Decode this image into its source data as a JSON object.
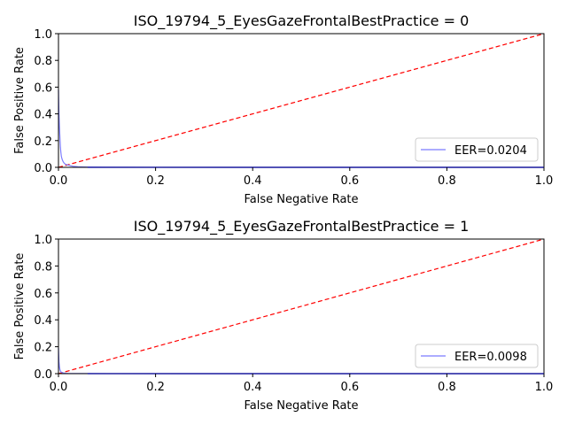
{
  "chart_data": [
    {
      "type": "line",
      "title": "ISO_19794_5_EyesGazeFrontalBestPractice = 0",
      "xlabel": "False Negative Rate",
      "ylabel": "False Positive Rate",
      "xlim": [
        0,
        1
      ],
      "ylim": [
        0,
        1
      ],
      "xticks": [
        "0.0",
        "0.2",
        "0.4",
        "0.6",
        "0.8",
        "1.0"
      ],
      "yticks": [
        "0.0",
        "0.2",
        "0.4",
        "0.6",
        "0.8",
        "1.0"
      ],
      "legend_position": "lower-right",
      "diagonal": {
        "x": [
          0,
          1
        ],
        "y": [
          0,
          1
        ],
        "color": "#ff0000",
        "style": "dashed"
      },
      "series": [
        {
          "name": "EER=0.0204",
          "color": "#7b7bff",
          "x": [
            0.0,
            0.001,
            0.002,
            0.003,
            0.004,
            0.005,
            0.006,
            0.008,
            0.01,
            0.012,
            0.015,
            0.02,
            0.025,
            0.03,
            0.04,
            0.06,
            0.1,
            0.2,
            0.4,
            0.7,
            1.0
          ],
          "y": [
            0.58,
            0.4,
            0.3,
            0.22,
            0.15,
            0.11,
            0.08,
            0.055,
            0.04,
            0.03,
            0.022,
            0.017,
            0.012,
            0.008,
            0.004,
            0.002,
            0.001,
            0.0005,
            0.0,
            0.0,
            0.0
          ]
        }
      ]
    },
    {
      "type": "line",
      "title": "ISO_19794_5_EyesGazeFrontalBestPractice = 1",
      "xlabel": "False Negative Rate",
      "ylabel": "False Positive Rate",
      "xlim": [
        0,
        1
      ],
      "ylim": [
        0,
        1
      ],
      "xticks": [
        "0.0",
        "0.2",
        "0.4",
        "0.6",
        "0.8",
        "1.0"
      ],
      "yticks": [
        "0.0",
        "0.2",
        "0.4",
        "0.6",
        "0.8",
        "1.0"
      ],
      "legend_position": "lower-right",
      "diagonal": {
        "x": [
          0,
          1
        ],
        "y": [
          0,
          1
        ],
        "color": "#ff0000",
        "style": "dashed"
      },
      "series": [
        {
          "name": "EER=0.0098",
          "color": "#7b7bff",
          "x": [
            0.0,
            0.001,
            0.002,
            0.003,
            0.004,
            0.005,
            0.007,
            0.01,
            0.015,
            0.02,
            0.05,
            0.1,
            0.3,
            0.6,
            1.0
          ],
          "y": [
            0.19,
            0.09,
            0.05,
            0.03,
            0.02,
            0.013,
            0.009,
            0.005,
            0.003,
            0.002,
            0.001,
            0.0005,
            0.0,
            0.0,
            0.0
          ]
        }
      ]
    }
  ]
}
